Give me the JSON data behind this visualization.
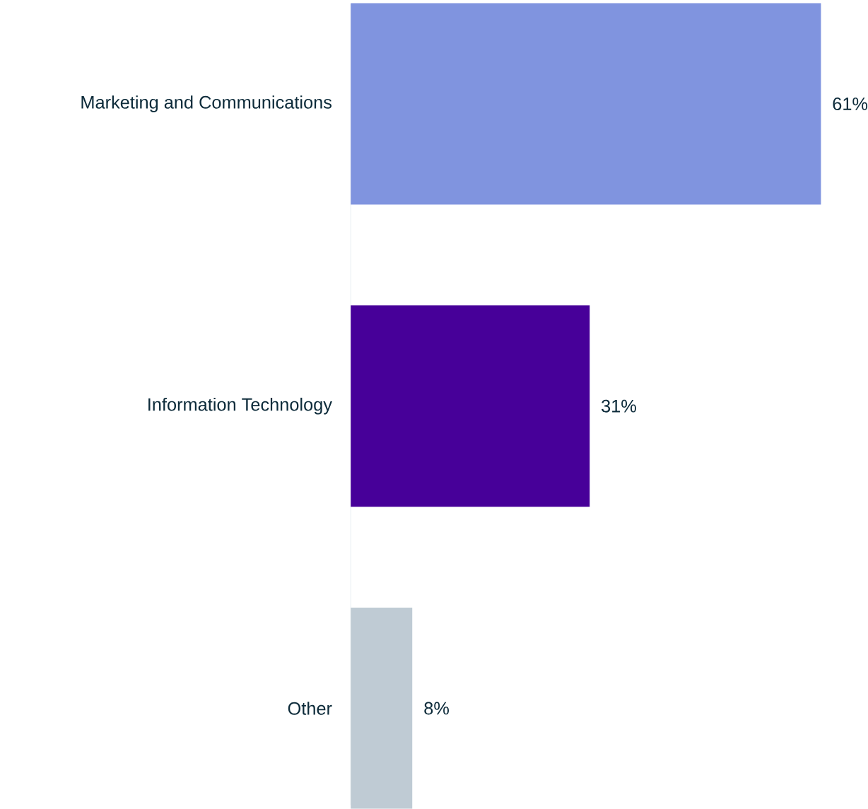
{
  "chart_data": {
    "type": "bar",
    "orientation": "horizontal",
    "categories": [
      "Marketing and Communications",
      "Information Technology",
      "Other"
    ],
    "values": [
      61,
      31,
      8
    ],
    "colors": [
      "#8094df",
      "#470099",
      "#bfcbd4"
    ],
    "value_labels": [
      "61%",
      "31%",
      "8%"
    ]
  }
}
